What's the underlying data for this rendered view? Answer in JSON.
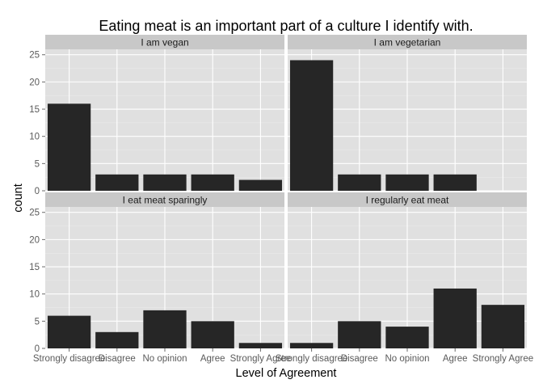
{
  "chart_data": {
    "type": "bar",
    "title": "Eating meat is an important part of a culture I identify with.",
    "xlabel": "Level of Agreement",
    "ylabel": "count",
    "categories": [
      "Strongly disagree",
      "Disagree",
      "No opinion",
      "Agree",
      "Strongly Agree"
    ],
    "ylim": [
      0,
      26
    ],
    "yticks": [
      0,
      5,
      10,
      15,
      20,
      25
    ],
    "grid": true,
    "bar_color": "#262626",
    "panel_color": "#e0e0e0",
    "strip_color": "#c8c8c8",
    "panels": [
      {
        "label": "I am vegan",
        "values": [
          16,
          3,
          3,
          3,
          2
        ]
      },
      {
        "label": "I am vegetarian",
        "values": [
          24,
          3,
          3,
          3,
          0
        ]
      },
      {
        "label": "I eat meat sparingly",
        "values": [
          6,
          3,
          7,
          5,
          1
        ]
      },
      {
        "label": "I regularly eat meat",
        "values": [
          1,
          5,
          4,
          11,
          8
        ]
      }
    ]
  }
}
